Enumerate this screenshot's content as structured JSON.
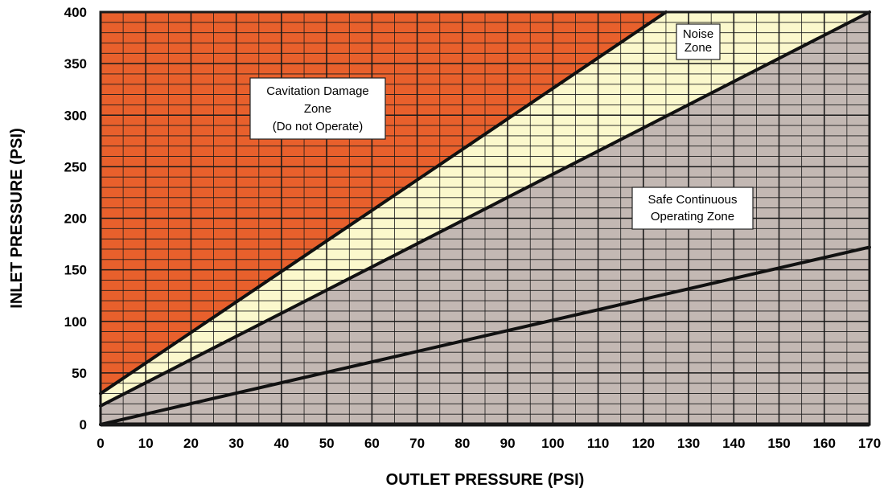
{
  "chart_data": {
    "type": "area",
    "xlabel": "OUTLET PRESSURE (PSI)",
    "ylabel": "INLET PRESSURE (PSI)",
    "xlim": [
      0,
      170
    ],
    "ylim": [
      0,
      400
    ],
    "x_ticks": [
      "0",
      "10",
      "20",
      "30",
      "40",
      "50",
      "60",
      "70",
      "80",
      "90",
      "100",
      "110",
      "120",
      "130",
      "140",
      "150",
      "160",
      "170"
    ],
    "y_ticks": [
      "0",
      "50",
      "100",
      "150",
      "200",
      "250",
      "300",
      "350",
      "400"
    ],
    "grid": true,
    "colors": {
      "cavitation": "#e8602c",
      "noise": "#fbf8cc",
      "safe": "#86c69c",
      "bottom": "#c3b8b3"
    },
    "boundary_lines": [
      {
        "points": [
          [
            0,
            30
          ],
          [
            125,
            400
          ]
        ]
      },
      {
        "points": [
          [
            0,
            18
          ],
          [
            170,
            400
          ]
        ]
      },
      {
        "points": [
          [
            0,
            0
          ],
          [
            170,
            172
          ]
        ]
      }
    ],
    "zones": [
      {
        "key": "cavitation",
        "label_lines": [
          "Cavitation Damage",
          "Zone",
          "(Do not Operate)"
        ]
      },
      {
        "key": "noise",
        "label_lines": [
          "Noise",
          "Zone"
        ]
      },
      {
        "key": "safe",
        "label_lines": [
          "Safe Continuous",
          "Operating Zone"
        ]
      }
    ]
  }
}
